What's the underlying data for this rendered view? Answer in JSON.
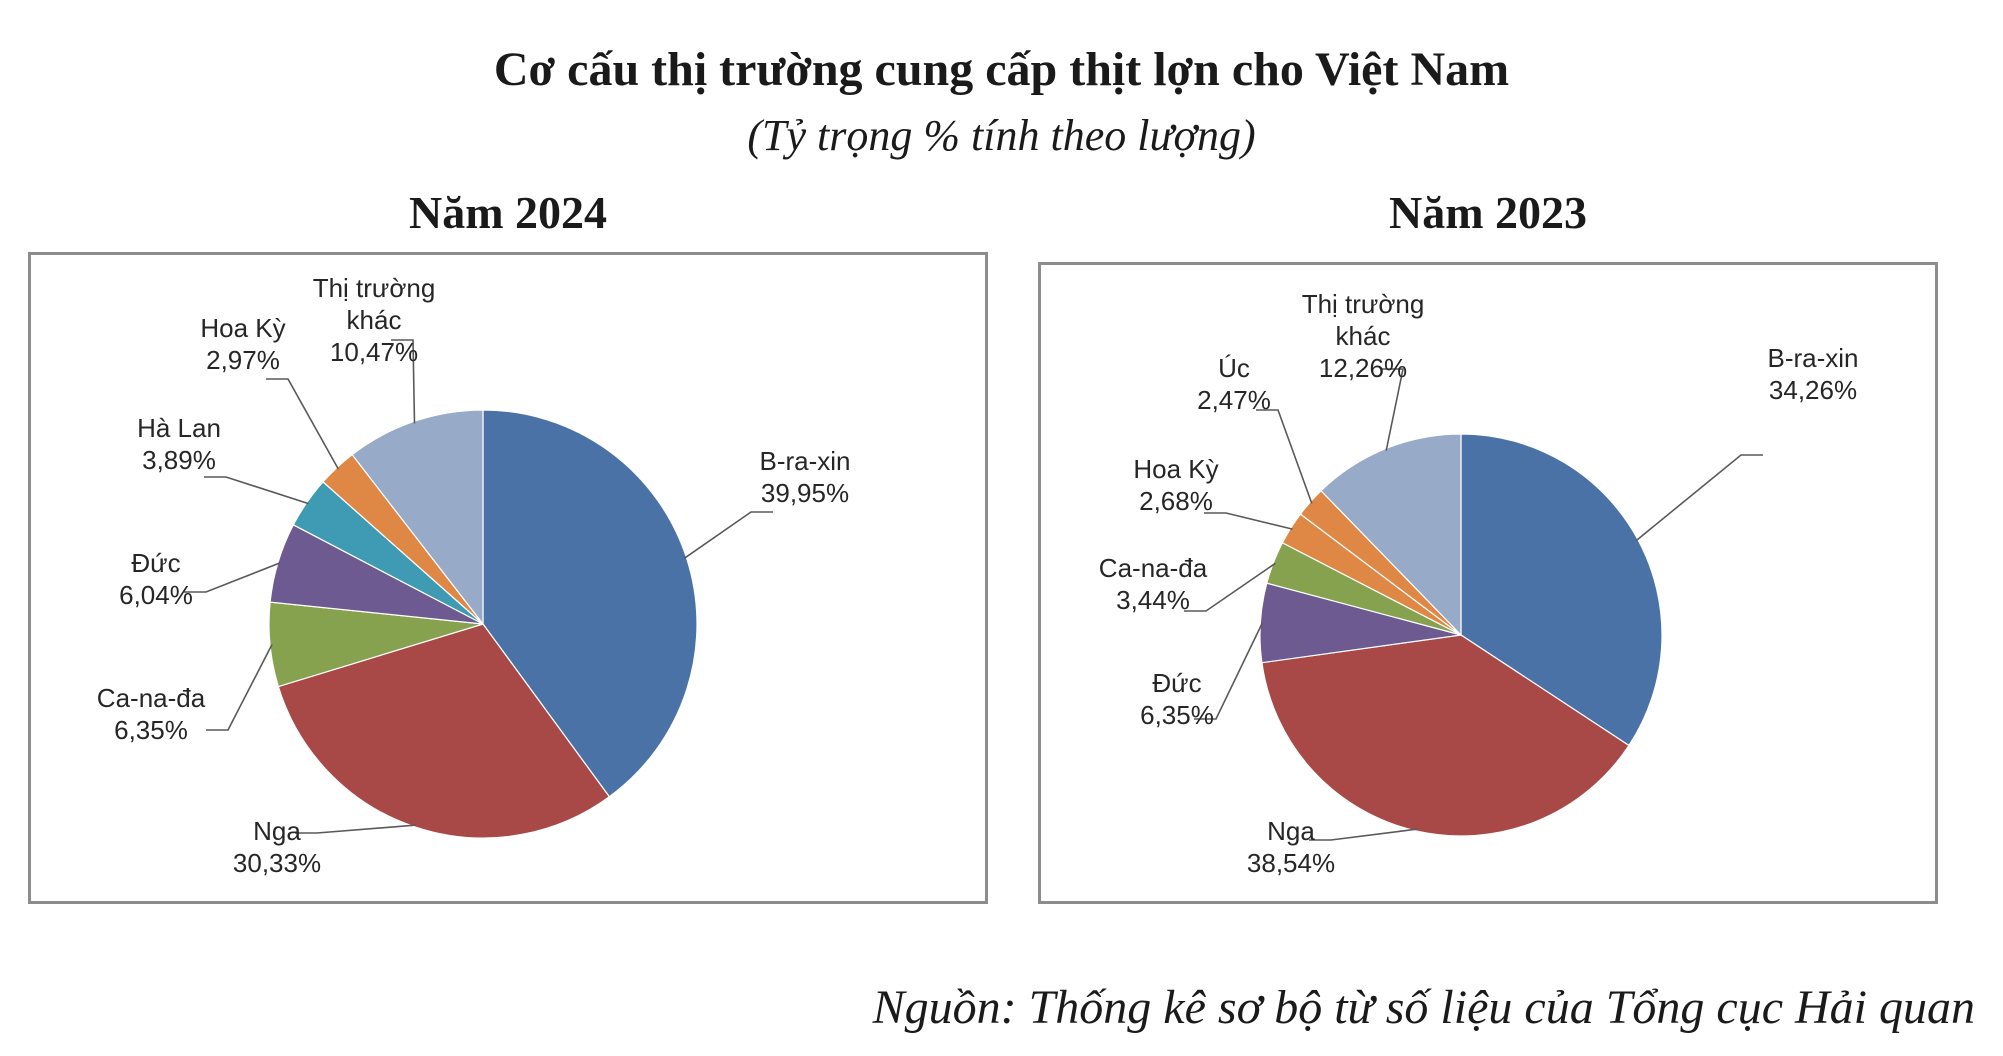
{
  "title": "Cơ cấu thị trường cung cấp thịt lợn cho Việt Nam",
  "subtitle": "(Tỷ trọng % tính theo lượng)",
  "source": "Nguồn: Thống kê sơ bộ từ số liệu của Tổng cục Hải quan",
  "colors": {
    "B-ra-xin": "#4A72A6",
    "Nga": "#A84948",
    "Ca-na-đa": "#87A24F",
    "Đức": "#6C5A91",
    "Hà Lan": "#3F9AB3",
    "Hoa Kỳ": "#DF8745",
    "Úc": "#DF8745",
    "Thị trường khác": "#97AAC8"
  },
  "chart_data": [
    {
      "type": "pie",
      "title": "Năm 2024",
      "slices": [
        {
          "name": "B-ra-xin",
          "label_lines": [
            "B-ra-xin",
            "39,95%"
          ],
          "value": 39.95
        },
        {
          "name": "Nga",
          "label_lines": [
            "Nga",
            "30,33%"
          ],
          "value": 30.33
        },
        {
          "name": "Ca-na-đa",
          "label_lines": [
            "Ca-na-đa",
            "6,35%"
          ],
          "value": 6.35
        },
        {
          "name": "Đức",
          "label_lines": [
            "Đức",
            "6,04%"
          ],
          "value": 6.04
        },
        {
          "name": "Hà Lan",
          "label_lines": [
            "Hà Lan",
            "3,89%"
          ],
          "value": 3.89
        },
        {
          "name": "Hoa Kỳ",
          "label_lines": [
            "Hoa Kỳ",
            "2,97%"
          ],
          "value": 2.97
        },
        {
          "name": "Thị trường khác",
          "label_lines": [
            "Thị trường",
            "khác",
            "10,47%"
          ],
          "value": 10.47
        }
      ]
    },
    {
      "type": "pie",
      "title": "Năm 2023",
      "slices": [
        {
          "name": "B-ra-xin",
          "label_lines": [
            "B-ra-xin",
            "34,26%"
          ],
          "value": 34.26
        },
        {
          "name": "Nga",
          "label_lines": [
            "Nga",
            "38,54%"
          ],
          "value": 38.54
        },
        {
          "name": "Đức",
          "label_lines": [
            "Đức",
            "6,35%"
          ],
          "value": 6.35
        },
        {
          "name": "Ca-na-đa",
          "label_lines": [
            "Ca-na-đa",
            "3,44%"
          ],
          "value": 3.44
        },
        {
          "name": "Hoa Kỳ",
          "label_lines": [
            "Hoa Kỳ",
            "2,68%"
          ],
          "value": 2.68
        },
        {
          "name": "Úc",
          "label_lines": [
            "Úc",
            "2,47%"
          ],
          "value": 2.47
        },
        {
          "name": "Thị trường khác",
          "label_lines": [
            "Thị trường",
            "khác",
            "12,26%"
          ],
          "value": 12.26
        }
      ]
    }
  ]
}
